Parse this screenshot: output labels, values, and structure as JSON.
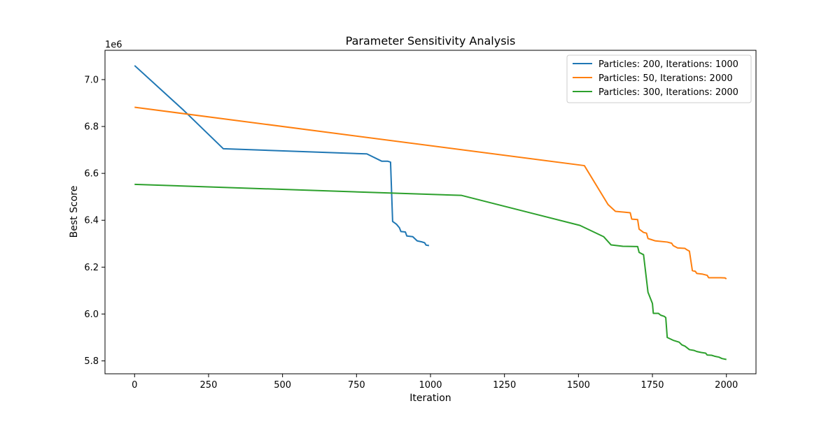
{
  "chart_data": {
    "type": "line",
    "title": "Parameter Sensitivity Analysis",
    "xlabel": "Iteration",
    "ylabel": "Best Score",
    "y_offset_label": "1e6",
    "y_scale": 1000000,
    "xlim": [
      -100,
      2100
    ],
    "ylim": [
      5745000,
      7125000
    ],
    "x_ticks": [
      0,
      250,
      500,
      750,
      1000,
      1250,
      1500,
      1750,
      2000
    ],
    "y_ticks": [
      5800000,
      6000000,
      6200000,
      6400000,
      6600000,
      6800000,
      7000000
    ],
    "x_tick_labels": [
      "0",
      "250",
      "500",
      "750",
      "1000",
      "1250",
      "1500",
      "1750",
      "2000"
    ],
    "y_tick_labels": [
      "5.8",
      "6.0",
      "6.2",
      "6.4",
      "6.6",
      "6.8",
      "7.0"
    ],
    "grid": false,
    "legend_position": "top-right",
    "series": [
      {
        "name": "Particles: 200, Iterations: 1000",
        "color": "#1f77b4",
        "points": [
          [
            0,
            7060000
          ],
          [
            165,
            6870000
          ],
          [
            300,
            6705000
          ],
          [
            785,
            6683000
          ],
          [
            835,
            6652000
          ],
          [
            855,
            6652000
          ],
          [
            865,
            6648000
          ],
          [
            872,
            6395000
          ],
          [
            885,
            6383000
          ],
          [
            895,
            6368000
          ],
          [
            900,
            6352000
          ],
          [
            915,
            6350000
          ],
          [
            920,
            6333000
          ],
          [
            940,
            6330000
          ],
          [
            955,
            6312000
          ],
          [
            970,
            6308000
          ],
          [
            980,
            6304000
          ],
          [
            985,
            6294000
          ],
          [
            995,
            6292000
          ]
        ]
      },
      {
        "name": "Particles: 50, Iterations: 2000",
        "color": "#ff7f0e",
        "points": [
          [
            0,
            6882000
          ],
          [
            1520,
            6633000
          ],
          [
            1600,
            6467000
          ],
          [
            1625,
            6438000
          ],
          [
            1675,
            6432000
          ],
          [
            1680,
            6405000
          ],
          [
            1700,
            6403000
          ],
          [
            1705,
            6362000
          ],
          [
            1720,
            6348000
          ],
          [
            1730,
            6345000
          ],
          [
            1735,
            6322000
          ],
          [
            1745,
            6318000
          ],
          [
            1760,
            6312000
          ],
          [
            1800,
            6307000
          ],
          [
            1815,
            6302000
          ],
          [
            1820,
            6292000
          ],
          [
            1835,
            6282000
          ],
          [
            1860,
            6280000
          ],
          [
            1865,
            6275000
          ],
          [
            1875,
            6268000
          ],
          [
            1885,
            6185000
          ],
          [
            1895,
            6182000
          ],
          [
            1900,
            6173000
          ],
          [
            1920,
            6170000
          ],
          [
            1935,
            6165000
          ],
          [
            1940,
            6155000
          ],
          [
            1980,
            6155000
          ],
          [
            1995,
            6154000
          ],
          [
            2000,
            6150000
          ]
        ]
      },
      {
        "name": "Particles: 300, Iterations: 2000",
        "color": "#2ca02c",
        "points": [
          [
            0,
            6553000
          ],
          [
            1105,
            6506000
          ],
          [
            1505,
            6378000
          ],
          [
            1585,
            6330000
          ],
          [
            1610,
            6295000
          ],
          [
            1650,
            6289000
          ],
          [
            1700,
            6288000
          ],
          [
            1705,
            6263000
          ],
          [
            1720,
            6253000
          ],
          [
            1735,
            6093000
          ],
          [
            1750,
            6045000
          ],
          [
            1753,
            6003000
          ],
          [
            1770,
            6003000
          ],
          [
            1778,
            5995000
          ],
          [
            1790,
            5990000
          ],
          [
            1795,
            5985000
          ],
          [
            1800,
            5900000
          ],
          [
            1820,
            5888000
          ],
          [
            1840,
            5880000
          ],
          [
            1850,
            5868000
          ],
          [
            1860,
            5863000
          ],
          [
            1875,
            5848000
          ],
          [
            1890,
            5845000
          ],
          [
            1900,
            5840000
          ],
          [
            1915,
            5836000
          ],
          [
            1930,
            5833000
          ],
          [
            1935,
            5825000
          ],
          [
            1950,
            5824000
          ],
          [
            1960,
            5820000
          ],
          [
            1975,
            5816000
          ],
          [
            1985,
            5810000
          ],
          [
            2000,
            5806000
          ]
        ]
      }
    ]
  }
}
